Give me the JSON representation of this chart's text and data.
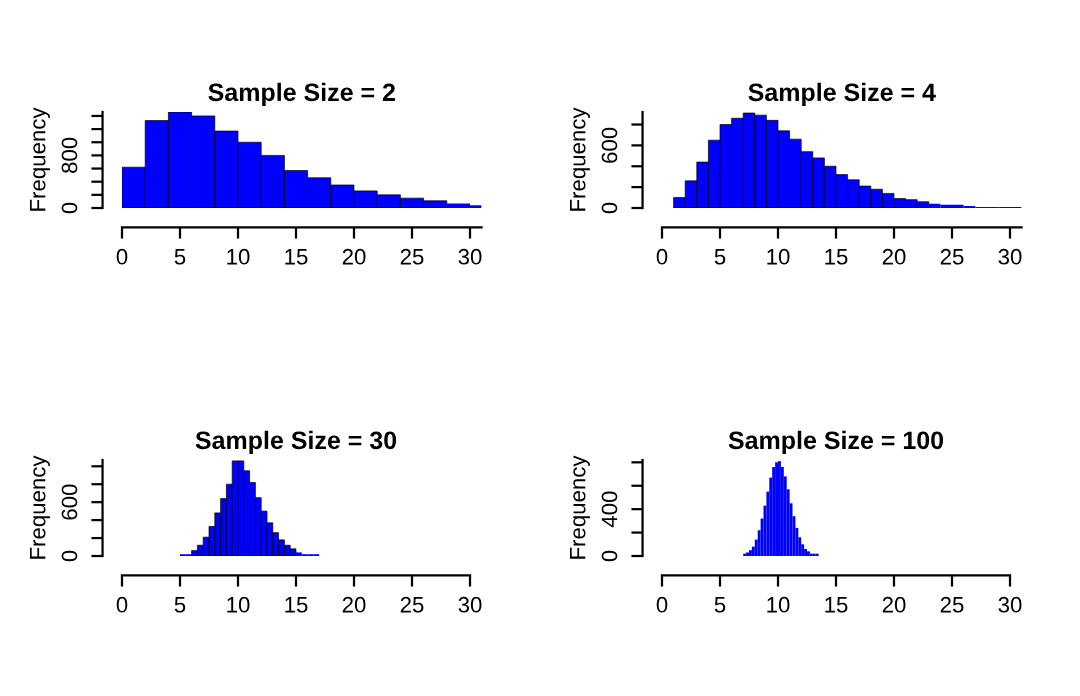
{
  "chart_data": [
    {
      "type": "histogram",
      "title": "Sample Size = 2",
      "ylabel": "Frequency",
      "color": "#0000ff",
      "bins": [
        0,
        2,
        4,
        6,
        8,
        10,
        12,
        14,
        16,
        18,
        20,
        22,
        24,
        26,
        28,
        30,
        31
      ],
      "values": [
        620,
        1330,
        1460,
        1400,
        1170,
        1000,
        800,
        570,
        460,
        350,
        260,
        200,
        150,
        110,
        70,
        40
      ],
      "xlim": [
        0,
        31
      ],
      "ylim": [
        0,
        1460
      ],
      "xticks": [
        0,
        5,
        10,
        15,
        20,
        25,
        30
      ],
      "yticks": [
        0,
        {
          "value": 200,
          "label": null
        },
        {
          "value": 400,
          "label": null
        },
        {
          "value": 600,
          "label": null
        },
        800,
        {
          "value": 1000,
          "label": null
        },
        {
          "value": 1200,
          "label": null
        },
        {
          "value": 1400,
          "label": null
        }
      ]
    },
    {
      "type": "histogram",
      "title": "Sample Size = 4",
      "ylabel": "Frequency",
      "color": "#0000ff",
      "bins": [
        1,
        2,
        3,
        4,
        5,
        6,
        7,
        8,
        9,
        10,
        11,
        12,
        13,
        14,
        15,
        16,
        17,
        18,
        19,
        20,
        21,
        22,
        23,
        24,
        25,
        26,
        27,
        28,
        29,
        30,
        31
      ],
      "values": [
        100,
        260,
        440,
        650,
        800,
        860,
        910,
        890,
        840,
        740,
        660,
        540,
        480,
        400,
        320,
        270,
        210,
        180,
        140,
        90,
        80,
        60,
        40,
        30,
        30,
        20,
        10,
        10,
        10,
        10
      ],
      "xlim": [
        0,
        31
      ],
      "ylim": [
        0,
        920
      ],
      "xticks": [
        0,
        5,
        10,
        15,
        20,
        25,
        30
      ],
      "yticks": [
        0,
        {
          "value": 200,
          "label": null
        },
        {
          "value": 400,
          "label": null
        },
        600,
        {
          "value": 800,
          "label": null
        }
      ]
    },
    {
      "type": "histogram",
      "title": "Sample Size = 30",
      "ylabel": "Frequency",
      "color": "#0000ff",
      "bins": [
        4.5,
        5,
        5.5,
        6,
        6.5,
        7,
        7.5,
        8,
        8.5,
        9,
        9.5,
        10,
        10.5,
        11,
        11.5,
        12,
        12.5,
        13,
        13.5,
        14,
        14.5,
        15,
        15.5,
        16,
        16.5,
        17,
        17.5
      ],
      "values": [
        0,
        20,
        20,
        60,
        120,
        210,
        330,
        480,
        640,
        800,
        1060,
        1060,
        950,
        820,
        650,
        500,
        370,
        260,
        180,
        120,
        80,
        40,
        20,
        20,
        20,
        0
      ],
      "xlim": [
        0,
        30
      ],
      "ylim": [
        0,
        1070
      ],
      "xticks": [
        0,
        5,
        10,
        15,
        20,
        25,
        30
      ],
      "yticks": [
        0,
        {
          "value": 200,
          "label": null
        },
        {
          "value": 400,
          "label": null
        },
        600,
        {
          "value": 800,
          "label": null
        },
        {
          "value": 1000,
          "label": null
        }
      ]
    },
    {
      "type": "histogram",
      "title": "Sample Size = 100",
      "ylabel": "Frequency",
      "color": "#0000ff",
      "bins": [
        7.0,
        7.25,
        7.5,
        7.75,
        8.0,
        8.25,
        8.5,
        8.75,
        9.0,
        9.25,
        9.5,
        9.75,
        10.0,
        10.25,
        10.5,
        10.75,
        11.0,
        11.25,
        11.5,
        11.75,
        12.0,
        12.25,
        12.5,
        12.75,
        13.0,
        13.25,
        13.5
      ],
      "values": [
        20,
        30,
        50,
        80,
        140,
        220,
        320,
        430,
        550,
        670,
        760,
        800,
        810,
        760,
        680,
        570,
        450,
        340,
        240,
        160,
        100,
        60,
        40,
        20,
        20,
        20
      ],
      "xlim": [
        0,
        30
      ],
      "ylim": [
        0,
        820
      ],
      "xticks": [
        0,
        5,
        10,
        15,
        20,
        25,
        30
      ],
      "yticks": [
        0,
        {
          "value": 200,
          "label": null
        },
        400,
        {
          "value": 600,
          "label": null
        },
        {
          "value": 800,
          "label": null
        }
      ]
    }
  ]
}
